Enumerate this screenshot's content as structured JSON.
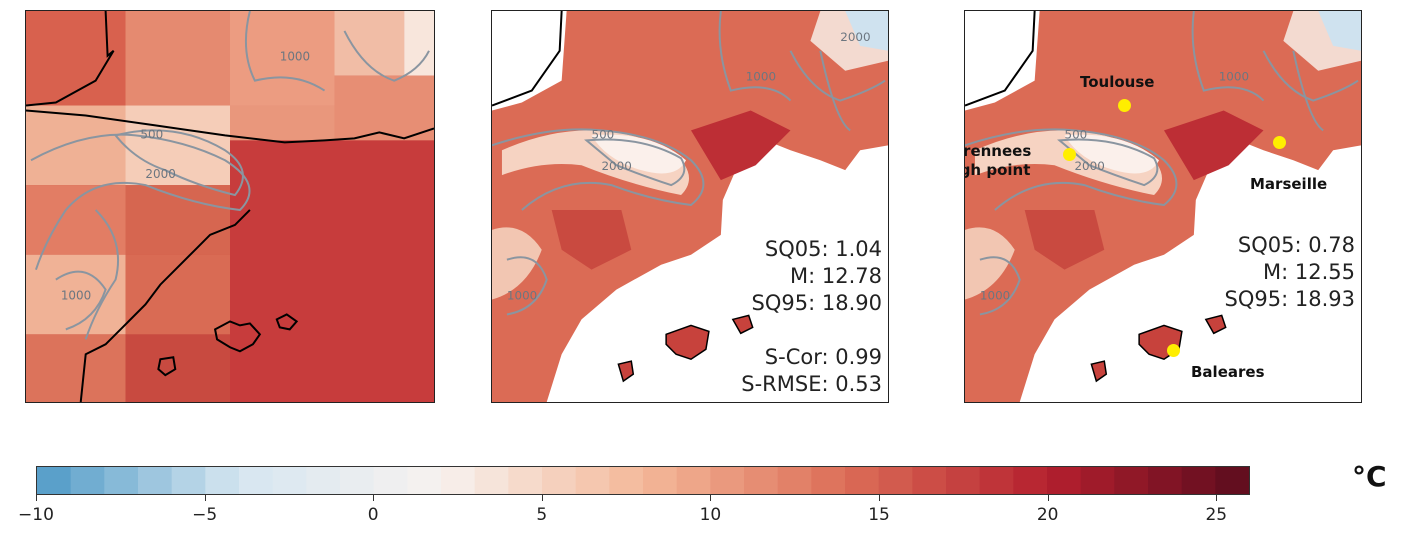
{
  "panels": [
    {
      "name": "coarse-map"
    },
    {
      "name": "model-map",
      "stats": {
        "sq05": "SQ05: 1.04",
        "m": "M: 12.78",
        "sq95": "SQ95: 18.90",
        "scor": "S-Cor: 0.99",
        "srmse": "S-RMSE: 0.53"
      }
    },
    {
      "name": "reference-map",
      "stats": {
        "sq05": "SQ05: 0.78",
        "m": "M: 12.55",
        "sq95": "SQ95: 18.93"
      },
      "locations": {
        "toulouse": "Toulouse",
        "pyrenees_1": "Pyrennees",
        "pyrenees_2": "High point",
        "marseille": "Marseille",
        "baleares": "Baleares"
      }
    }
  ],
  "contour_labels": [
    "500",
    "1000",
    "2000"
  ],
  "colorbar": {
    "unit": "°C",
    "min": -10,
    "max": 26,
    "ticks": [
      "−10",
      "−5",
      "0",
      "5",
      "10",
      "15",
      "20",
      "25"
    ],
    "tick_values": [
      -10,
      -5,
      0,
      5,
      10,
      15,
      20,
      25
    ],
    "colors": [
      "#4f9ac6",
      "#d6e6f1",
      "#f7f2ef",
      "#f4b899",
      "#dc6e58",
      "#b5202e",
      "#5c0c1e"
    ]
  }
}
